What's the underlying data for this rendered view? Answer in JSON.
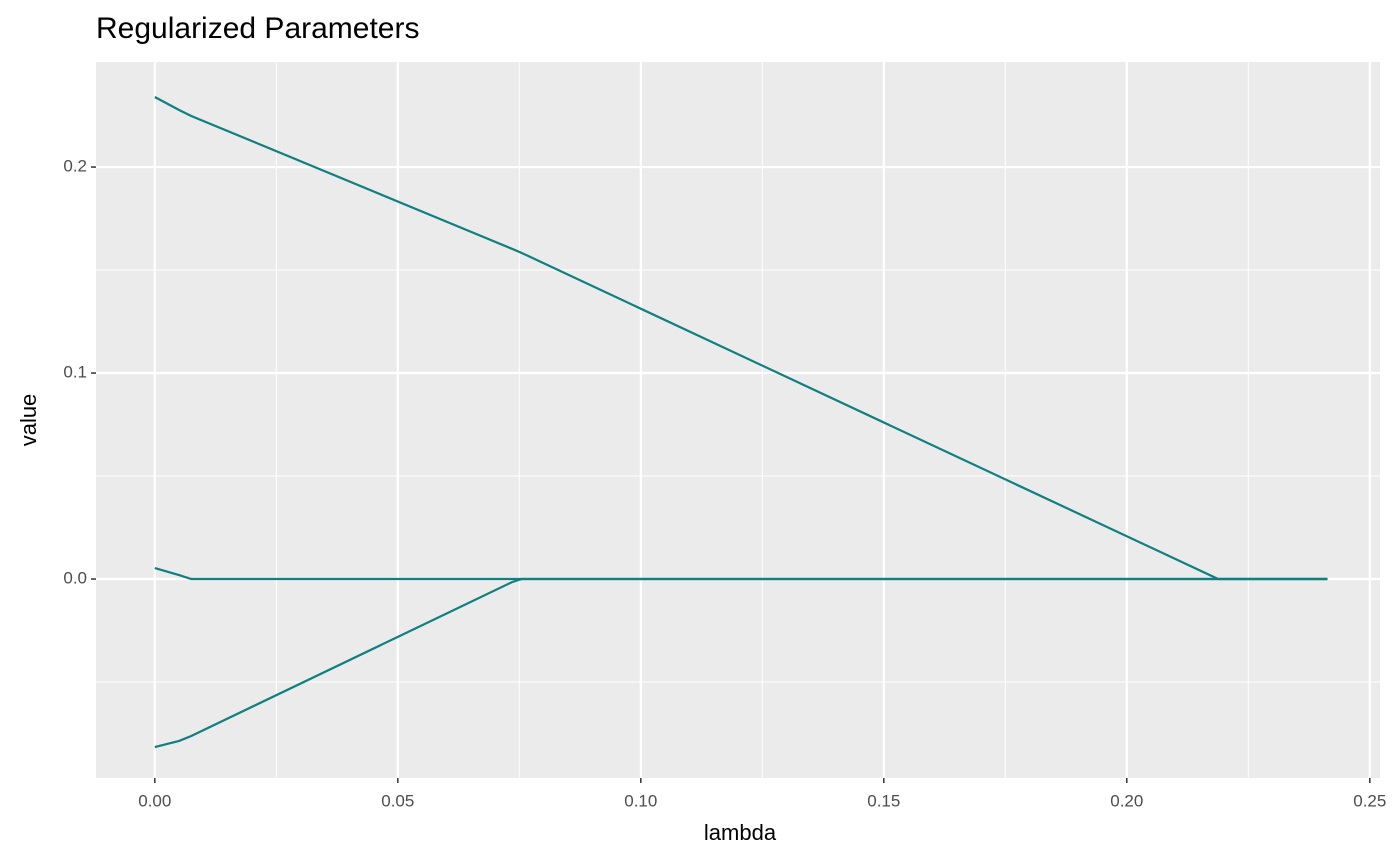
{
  "chart_data": {
    "type": "line",
    "title": "Regularized Parameters",
    "x_label": "lambda",
    "y_label": "value",
    "x": [
      0,
      0.005,
      0.0075,
      0.0735,
      0.0751,
      0.0755,
      0.2188,
      0.2413
    ],
    "series": [
      {
        "color": "#0f7f80",
        "values": [
          0.234,
          0.2277,
          0.2248,
          0.1603,
          0.1587,
          0.1583,
          0,
          0
        ]
      },
      {
        "color": "#0f7f80",
        "values": [
          0.0053,
          0.0019,
          0,
          0,
          0,
          0,
          0,
          0
        ]
      },
      {
        "color": "#0f7f80",
        "values": [
          -0.0816,
          -0.0786,
          -0.0762,
          -0.0015,
          -0.0003,
          0,
          0,
          0
        ]
      }
    ],
    "xlim": [
      -0.0121,
      0.2521
    ],
    "ylim": [
      -0.0966,
      0.251
    ],
    "xticks": [
      {
        "value": 0,
        "label": "0.00"
      },
      {
        "value": 0.05,
        "label": "0.05"
      },
      {
        "value": 0.1,
        "label": "0.10"
      },
      {
        "value": 0.15,
        "label": "0.15"
      },
      {
        "value": 0.2,
        "label": "0.20"
      },
      {
        "value": 0.25,
        "label": "0.25"
      }
    ],
    "yticks": [
      {
        "value": 0,
        "label": "0.0"
      },
      {
        "value": 0.1,
        "label": "0.1"
      },
      {
        "value": 0.2,
        "label": "0.2"
      }
    ],
    "xminor": [
      0.025,
      0.075,
      0.125,
      0.175,
      0.225
    ],
    "yminor": [
      -0.05,
      0.05,
      0.15
    ],
    "grid": true
  }
}
